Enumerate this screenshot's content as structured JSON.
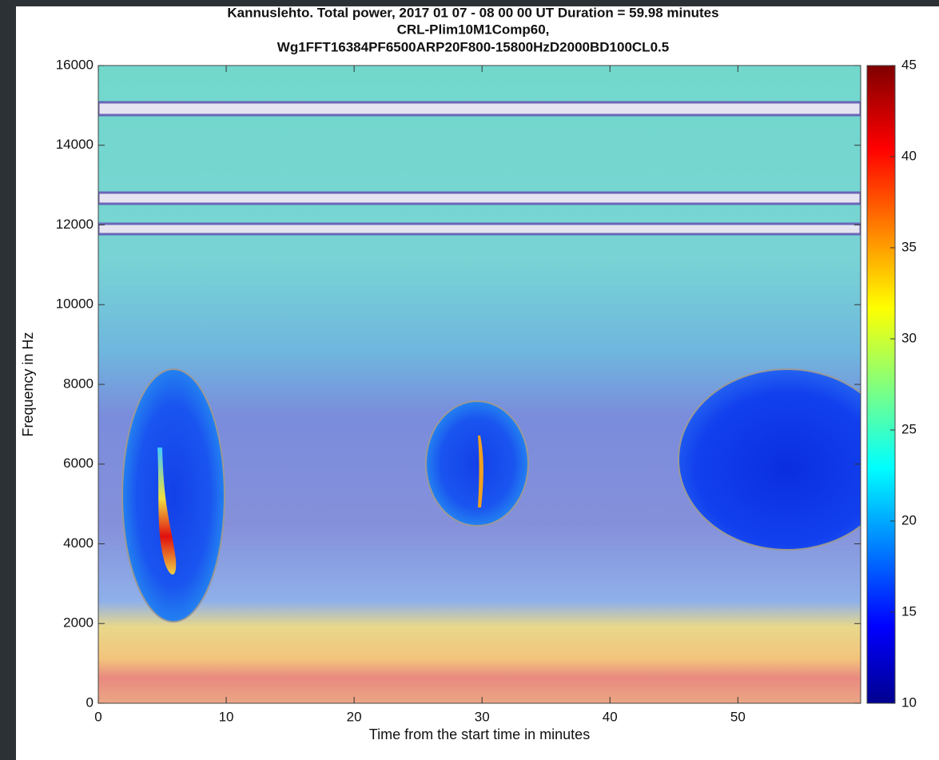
{
  "chart_data": {
    "type": "spectrogram",
    "title": "Kannuslehto. Total power, 2017 01 07 - 08 00 00 UT  Duration = 59.98 minutes",
    "subtitle": [
      "CRL-Plim10M1Comp60,",
      "Wg1FFT16384PF6500ARP20F800-15800HzD2000BD100CL0.5"
    ],
    "x_label": "Time from the start time in minutes",
    "y_label": "Frequency in Hz",
    "xlim": [
      0,
      59.6
    ],
    "xticks": [
      0,
      10,
      20,
      30,
      40,
      50
    ],
    "ylim": [
      0,
      16000
    ],
    "yticks": [
      0,
      2000,
      4000,
      6000,
      8000,
      10000,
      12000,
      14000,
      16000
    ],
    "colorbar": {
      "colormap": "jet",
      "lim": [
        10,
        45
      ],
      "ticks": [
        10,
        15,
        20,
        25,
        30,
        35,
        40,
        45
      ]
    }
  }
}
